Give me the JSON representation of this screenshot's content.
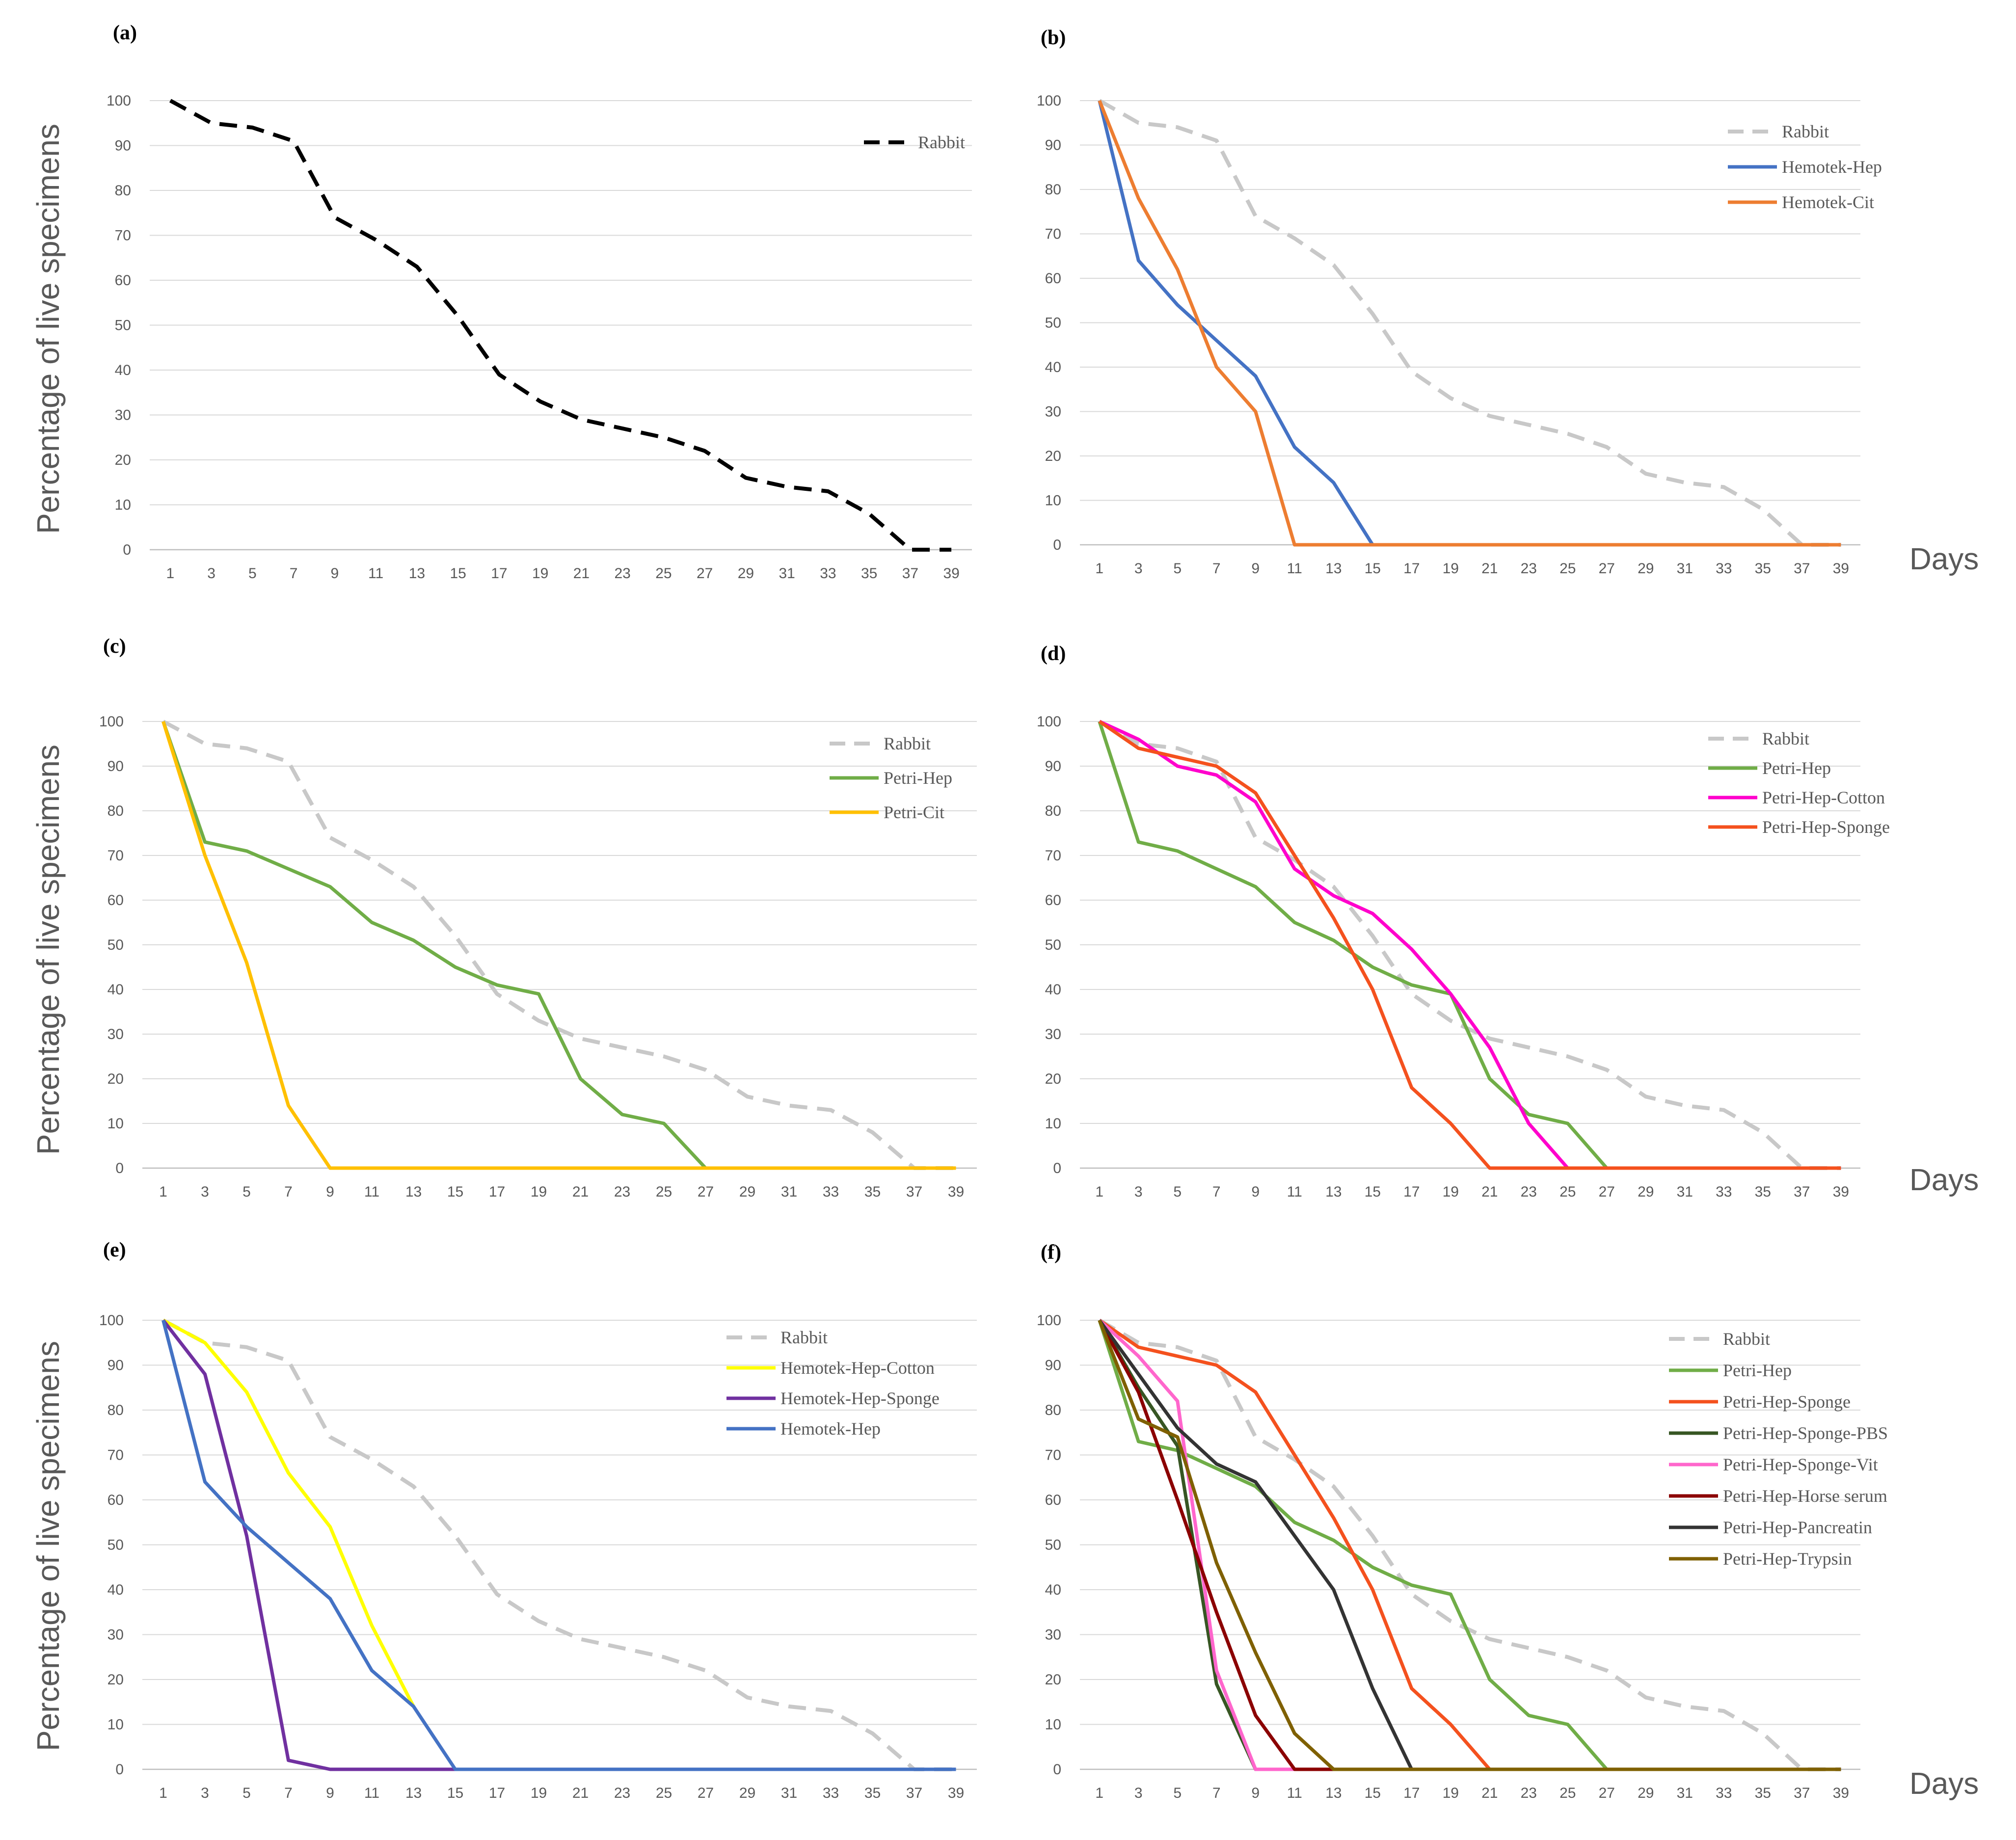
{
  "chart_data": [
    {
      "type": "line",
      "panel_label": "(a)",
      "ylabel": "Percentage of live specimens",
      "xlabel": "",
      "x": [
        1,
        3,
        5,
        7,
        9,
        11,
        13,
        15,
        17,
        19,
        21,
        23,
        25,
        27,
        29,
        31,
        33,
        35,
        37,
        39
      ],
      "xticks": [
        "1",
        "3",
        "5",
        "7",
        "9",
        "11",
        "13",
        "15",
        "17",
        "19",
        "21",
        "23",
        "25",
        "27",
        "29",
        "31",
        "33",
        "35",
        "37",
        "39"
      ],
      "yticks": [
        "0",
        "10",
        "20",
        "30",
        "40",
        "50",
        "60",
        "70",
        "80",
        "90",
        "100"
      ],
      "ylim": [
        0,
        100
      ],
      "series": [
        {
          "name": "Rabbit",
          "color": "#000000",
          "dash": "dashed",
          "values": [
            100,
            95,
            94,
            91,
            74,
            69,
            63,
            52,
            39,
            33,
            29,
            27,
            25,
            22,
            16,
            14,
            13,
            8,
            0,
            0
          ]
        }
      ]
    },
    {
      "type": "line",
      "panel_label": "(b)",
      "ylabel": "",
      "xlabel": "Days",
      "x": [
        1,
        3,
        5,
        7,
        9,
        11,
        13,
        15,
        17,
        19,
        21,
        23,
        25,
        27,
        29,
        31,
        33,
        35,
        37,
        39
      ],
      "xticks": [
        "1",
        "3",
        "5",
        "7",
        "9",
        "11",
        "13",
        "15",
        "17",
        "19",
        "21",
        "23",
        "25",
        "27",
        "29",
        "31",
        "33",
        "35",
        "37",
        "39"
      ],
      "yticks": [
        "0",
        "10",
        "20",
        "30",
        "40",
        "50",
        "60",
        "70",
        "80",
        "90",
        "100"
      ],
      "ylim": [
        0,
        100
      ],
      "series": [
        {
          "name": "Rabbit",
          "color": "#c8c8c8",
          "dash": "dashed",
          "values": [
            100,
            95,
            94,
            91,
            74,
            69,
            63,
            52,
            39,
            33,
            29,
            27,
            25,
            22,
            16,
            14,
            13,
            8,
            0,
            0
          ]
        },
        {
          "name": "Hemotek-Hep",
          "color": "#4472c4",
          "dash": "solid",
          "values": [
            100,
            64,
            54,
            46,
            38,
            22,
            14,
            0,
            0,
            0,
            0,
            0,
            0,
            0,
            0,
            0,
            0,
            0,
            0,
            0
          ]
        },
        {
          "name": "Hemotek-Cit",
          "color": "#ed7d31",
          "dash": "solid",
          "values": [
            100,
            78,
            62,
            40,
            30,
            0,
            0,
            0,
            0,
            0,
            0,
            0,
            0,
            0,
            0,
            0,
            0,
            0,
            0,
            0
          ]
        }
      ]
    },
    {
      "type": "line",
      "panel_label": "(c)",
      "ylabel": "Percentage of live specimens",
      "xlabel": "",
      "x": [
        1,
        3,
        5,
        7,
        9,
        11,
        13,
        15,
        17,
        19,
        21,
        23,
        25,
        27,
        29,
        31,
        33,
        35,
        37,
        39
      ],
      "xticks": [
        "1",
        "3",
        "5",
        "7",
        "9",
        "11",
        "13",
        "15",
        "17",
        "19",
        "21",
        "23",
        "25",
        "27",
        "29",
        "31",
        "33",
        "35",
        "37",
        "39"
      ],
      "yticks": [
        "0",
        "10",
        "20",
        "30",
        "40",
        "50",
        "60",
        "70",
        "80",
        "90",
        "100"
      ],
      "ylim": [
        0,
        100
      ],
      "series": [
        {
          "name": "Rabbit",
          "color": "#c8c8c8",
          "dash": "dashed",
          "values": [
            100,
            95,
            94,
            91,
            74,
            69,
            63,
            52,
            39,
            33,
            29,
            27,
            25,
            22,
            16,
            14,
            13,
            8,
            0,
            0
          ]
        },
        {
          "name": "Petri-Hep",
          "color": "#70ad47",
          "dash": "solid",
          "values": [
            100,
            73,
            71,
            67,
            63,
            55,
            51,
            45,
            41,
            39,
            20,
            12,
            10,
            0,
            0,
            0,
            0,
            0,
            0,
            0
          ]
        },
        {
          "name": "Petri-Cit",
          "color": "#ffc000",
          "dash": "solid",
          "values": [
            100,
            70,
            46,
            14,
            0,
            0,
            0,
            0,
            0,
            0,
            0,
            0,
            0,
            0,
            0,
            0,
            0,
            0,
            0,
            0
          ]
        }
      ]
    },
    {
      "type": "line",
      "panel_label": "(d)",
      "ylabel": "",
      "xlabel": "Days",
      "x": [
        1,
        3,
        5,
        7,
        9,
        11,
        13,
        15,
        17,
        19,
        21,
        23,
        25,
        27,
        29,
        31,
        33,
        35,
        37,
        39
      ],
      "xticks": [
        "1",
        "3",
        "5",
        "7",
        "9",
        "11",
        "13",
        "15",
        "17",
        "19",
        "21",
        "23",
        "25",
        "27",
        "29",
        "31",
        "33",
        "35",
        "37",
        "39"
      ],
      "yticks": [
        "0",
        "10",
        "20",
        "30",
        "40",
        "50",
        "60",
        "70",
        "80",
        "90",
        "100"
      ],
      "ylim": [
        0,
        100
      ],
      "series": [
        {
          "name": "Rabbit",
          "color": "#c8c8c8",
          "dash": "dashed",
          "values": [
            100,
            95,
            94,
            91,
            74,
            69,
            63,
            52,
            39,
            33,
            29,
            27,
            25,
            22,
            16,
            14,
            13,
            8,
            0,
            0
          ]
        },
        {
          "name": "Petri-Hep",
          "color": "#70ad47",
          "dash": "solid",
          "values": [
            100,
            73,
            71,
            67,
            63,
            55,
            51,
            45,
            41,
            39,
            20,
            12,
            10,
            0,
            0,
            0,
            0,
            0,
            0,
            0
          ]
        },
        {
          "name": "Petri-Hep-Cotton",
          "color": "#ff00cc",
          "dash": "solid",
          "values": [
            100,
            96,
            90,
            88,
            82,
            67,
            61,
            57,
            49,
            39,
            27,
            10,
            0,
            0,
            0,
            0,
            0,
            0,
            0,
            0
          ]
        },
        {
          "name": "Petri-Hep-Sponge",
          "color": "#f4511e",
          "dash": "solid",
          "values": [
            100,
            94,
            92,
            90,
            84,
            70,
            56,
            40,
            18,
            10,
            0,
            0,
            0,
            0,
            0,
            0,
            0,
            0,
            0,
            0
          ]
        }
      ]
    },
    {
      "type": "line",
      "panel_label": "(e)",
      "ylabel": "Percentage of live specimens",
      "xlabel": "",
      "x": [
        1,
        3,
        5,
        7,
        9,
        11,
        13,
        15,
        17,
        19,
        21,
        23,
        25,
        27,
        29,
        31,
        33,
        35,
        37,
        39
      ],
      "xticks": [
        "1",
        "3",
        "5",
        "7",
        "9",
        "11",
        "13",
        "15",
        "17",
        "19",
        "21",
        "23",
        "25",
        "27",
        "29",
        "31",
        "33",
        "35",
        "37",
        "39"
      ],
      "yticks": [
        "0",
        "10",
        "20",
        "30",
        "40",
        "50",
        "60",
        "70",
        "80",
        "90",
        "100"
      ],
      "ylim": [
        0,
        100
      ],
      "series": [
        {
          "name": "Rabbit",
          "color": "#c8c8c8",
          "dash": "dashed",
          "values": [
            100,
            95,
            94,
            91,
            74,
            69,
            63,
            52,
            39,
            33,
            29,
            27,
            25,
            22,
            16,
            14,
            13,
            8,
            0,
            0
          ]
        },
        {
          "name": "Hemotek-Hep-Cotton",
          "color": "#ffff00",
          "dash": "solid",
          "values": [
            100,
            95,
            84,
            66,
            54,
            32,
            14,
            null,
            null,
            null,
            null,
            null,
            null,
            null,
            null,
            null,
            null,
            null,
            null,
            null
          ]
        },
        {
          "name": "Hemotek-Hep-Sponge",
          "color": "#7030a0",
          "dash": "solid",
          "values": [
            100,
            88,
            52,
            2,
            0,
            0,
            0,
            0,
            null,
            null,
            null,
            null,
            null,
            null,
            null,
            null,
            null,
            null,
            null,
            null
          ]
        },
        {
          "name": "Hemotek-Hep",
          "color": "#4472c4",
          "dash": "solid",
          "values": [
            100,
            64,
            54,
            46,
            38,
            22,
            14,
            0,
            0,
            0,
            0,
            0,
            0,
            0,
            0,
            0,
            0,
            0,
            0,
            0
          ]
        }
      ]
    },
    {
      "type": "line",
      "panel_label": "(f)",
      "ylabel": "",
      "xlabel": "Days",
      "x": [
        1,
        3,
        5,
        7,
        9,
        11,
        13,
        15,
        17,
        19,
        21,
        23,
        25,
        27,
        29,
        31,
        33,
        35,
        37,
        39
      ],
      "xticks": [
        "1",
        "3",
        "5",
        "7",
        "9",
        "11",
        "13",
        "15",
        "17",
        "19",
        "21",
        "23",
        "25",
        "27",
        "29",
        "31",
        "33",
        "35",
        "37",
        "39"
      ],
      "yticks": [
        "0",
        "10",
        "20",
        "30",
        "40",
        "50",
        "60",
        "70",
        "80",
        "90",
        "100"
      ],
      "ylim": [
        0,
        100
      ],
      "series": [
        {
          "name": "Rabbit",
          "color": "#c8c8c8",
          "dash": "dashed",
          "values": [
            100,
            95,
            94,
            91,
            74,
            69,
            63,
            52,
            39,
            33,
            29,
            27,
            25,
            22,
            16,
            14,
            13,
            8,
            0,
            0
          ]
        },
        {
          "name": "Petri-Hep",
          "color": "#70ad47",
          "dash": "solid",
          "values": [
            100,
            73,
            71,
            67,
            63,
            55,
            51,
            45,
            41,
            39,
            20,
            12,
            10,
            0,
            0,
            0,
            0,
            0,
            0,
            0
          ]
        },
        {
          "name": "Petri-Hep-Sponge",
          "color": "#f4511e",
          "dash": "solid",
          "values": [
            100,
            94,
            92,
            90,
            84,
            70,
            56,
            40,
            18,
            10,
            0,
            0,
            0,
            0,
            0,
            0,
            0,
            0,
            0,
            0
          ]
        },
        {
          "name": "Petri-Hep-Sponge-PBS",
          "color": "#375623",
          "dash": "solid",
          "values": [
            100,
            85,
            72,
            19,
            0,
            0,
            0,
            0,
            0,
            0,
            0,
            0,
            0,
            0,
            0,
            0,
            0,
            0,
            0,
            0
          ]
        },
        {
          "name": "Petri-Hep-Sponge-Vit",
          "color": "#ff66cc",
          "dash": "solid",
          "values": [
            100,
            92,
            82,
            22,
            0,
            0,
            0,
            0,
            0,
            0,
            0,
            0,
            0,
            0,
            0,
            0,
            0,
            0,
            0,
            0
          ]
        },
        {
          "name": "Petri-Hep-Horse serum",
          "color": "#8b0000",
          "dash": "solid",
          "values": [
            100,
            84,
            60,
            35,
            12,
            0,
            0,
            0,
            0,
            0,
            0,
            0,
            0,
            0,
            0,
            0,
            0,
            0,
            0,
            0
          ]
        },
        {
          "name": "Petri-Hep-Pancreatin",
          "color": "#333333",
          "dash": "solid",
          "values": [
            100,
            88,
            76,
            68,
            64,
            52,
            40,
            18,
            0,
            0,
            0,
            0,
            0,
            0,
            0,
            0,
            0,
            0,
            0,
            0
          ]
        },
        {
          "name": "Petri-Hep-Trypsin",
          "color": "#7f6000",
          "dash": "solid",
          "values": [
            100,
            78,
            74,
            46,
            26,
            8,
            0,
            0,
            0,
            0,
            0,
            0,
            0,
            0,
            0,
            0,
            0,
            0,
            0,
            0
          ]
        }
      ]
    }
  ]
}
